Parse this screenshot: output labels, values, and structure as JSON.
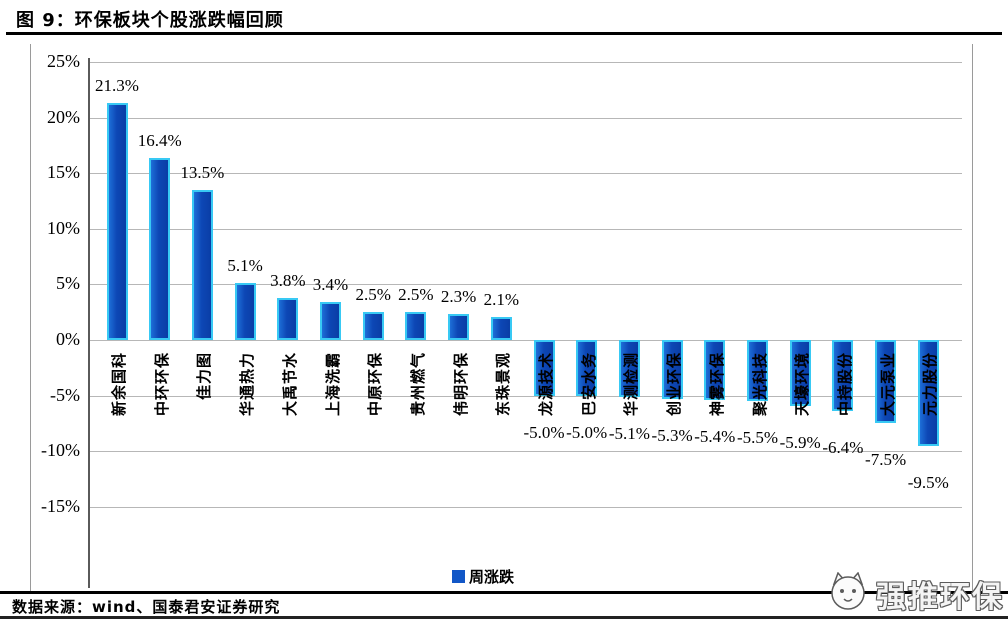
{
  "figure": {
    "title": "图 9：环保板块个股涨跌幅回顾",
    "source_note": "数据来源：wind、国泰君安证券研究",
    "watermark_text": "强推环保"
  },
  "chart_data": {
    "type": "bar",
    "title": "环保板块个股涨跌幅回顾",
    "xlabel": "",
    "ylabel": "涨跌幅(%)",
    "ylim": [
      -15,
      25
    ],
    "ytick_step": 5,
    "ytick_labels": [
      "25%",
      "20%",
      "15%",
      "10%",
      "5%",
      "0%",
      "-5%",
      "-10%",
      "-15%"
    ],
    "grid": true,
    "legend_position": "bottom-center",
    "legend": [
      {
        "label": "周涨跌",
        "color": "#1257c7"
      }
    ],
    "bar_fill": "#0d47b5",
    "bar_edge": "#38c9f4",
    "categories": [
      "新余国科",
      "中环环保",
      "佳力图",
      "华通热力",
      "大禹节水",
      "上海洗霸",
      "中原环保",
      "贵州燃气",
      "伟明环保",
      "东珠景观",
      "龙源技术",
      "巴安水务",
      "华测检测",
      "创业环保",
      "神雾环保",
      "聚光科技",
      "天壕环境",
      "中持股份",
      "大元泵业",
      "元力股份"
    ],
    "values": [
      21.3,
      16.4,
      13.5,
      5.1,
      3.8,
      3.4,
      2.5,
      2.5,
      2.3,
      2.1,
      -5.0,
      -5.0,
      -5.1,
      -5.3,
      -5.4,
      -5.5,
      -5.9,
      -6.4,
      -7.5,
      -9.5
    ],
    "value_labels": [
      "21.3%",
      "16.4%",
      "13.5%",
      "5.1%",
      "3.8%",
      "3.4%",
      "2.5%",
      "2.5%",
      "2.3%",
      "2.1%",
      "-5.0%",
      "-5.0%",
      "-5.1%",
      "-5.3%",
      "-5.4%",
      "-5.5%",
      "-5.9%",
      "-6.4%",
      "-7.5%",
      "-9.5%"
    ]
  }
}
